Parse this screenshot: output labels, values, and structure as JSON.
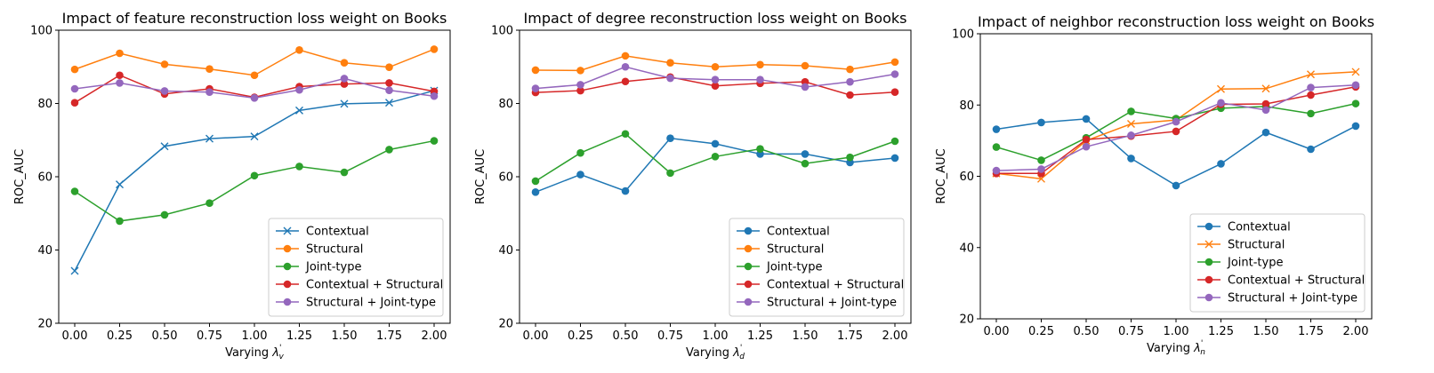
{
  "chart_data": [
    {
      "type": "line",
      "title": "Impact of feature reconstruction loss weight on Books",
      "xlabel": "Varying",
      "xlabel_symbol": "λ",
      "xlabel_sub": "v",
      "xlabel_sup": "'",
      "ylabel": "ROC_AUC",
      "ylim": [
        20,
        100
      ],
      "yticks": [
        20,
        40,
        60,
        80,
        100
      ],
      "x": [
        0.0,
        0.25,
        0.5,
        0.75,
        1.0,
        1.25,
        1.5,
        1.75,
        2.0
      ],
      "xtick_labels": [
        "0.00",
        "0.25",
        "0.50",
        "0.75",
        "1.00",
        "1.25",
        "1.50",
        "1.75",
        "2.00"
      ],
      "legend_position": "lower-right",
      "series": [
        {
          "name": "Contextual",
          "color": "#1f77b4",
          "marker": "x",
          "values": [
            34.3,
            57.9,
            68.3,
            70.4,
            71.0,
            78.1,
            79.9,
            80.2,
            83.5
          ]
        },
        {
          "name": "Structural",
          "color": "#ff7f0e",
          "marker": "circle",
          "values": [
            89.3,
            93.7,
            90.7,
            89.4,
            87.7,
            94.6,
            91.1,
            89.9,
            94.8
          ]
        },
        {
          "name": "Joint-type",
          "color": "#2ca02c",
          "marker": "circle",
          "values": [
            56.0,
            47.9,
            49.6,
            52.8,
            60.3,
            62.8,
            61.2,
            67.4,
            69.8
          ]
        },
        {
          "name": "Contextual + Structural",
          "color": "#d62728",
          "marker": "circle",
          "values": [
            80.2,
            87.7,
            82.6,
            84.0,
            81.7,
            84.6,
            85.3,
            85.6,
            83.3
          ]
        },
        {
          "name": "Structural + Joint-type",
          "color": "#9467bd",
          "marker": "circle",
          "values": [
            84.0,
            85.6,
            83.4,
            83.1,
            81.5,
            83.7,
            86.8,
            83.6,
            82.0
          ]
        }
      ]
    },
    {
      "type": "line",
      "title": "Impact of degree reconstruction loss weight on Books",
      "xlabel": "Varying",
      "xlabel_symbol": "λ",
      "xlabel_sub": "d",
      "xlabel_sup": "'",
      "ylabel": "ROC_AUC",
      "ylim": [
        20,
        100
      ],
      "yticks": [
        20,
        40,
        60,
        80,
        100
      ],
      "x": [
        0.0,
        0.25,
        0.5,
        0.75,
        1.0,
        1.25,
        1.5,
        1.75,
        2.0
      ],
      "xtick_labels": [
        "0.00",
        "0.25",
        "0.50",
        "0.75",
        "1.00",
        "1.25",
        "1.50",
        "1.75",
        "2.00"
      ],
      "legend_position": "lower-right",
      "series": [
        {
          "name": "Contextual",
          "color": "#1f77b4",
          "marker": "circle",
          "values": [
            55.8,
            60.6,
            56.1,
            70.5,
            69.0,
            66.2,
            66.2,
            63.9,
            65.1
          ]
        },
        {
          "name": "Structural",
          "color": "#ff7f0e",
          "marker": "circle",
          "values": [
            89.1,
            89.0,
            93.0,
            91.1,
            90.0,
            90.6,
            90.3,
            89.3,
            91.3
          ]
        },
        {
          "name": "Joint-type",
          "color": "#2ca02c",
          "marker": "circle",
          "values": [
            58.8,
            66.5,
            71.7,
            61.0,
            65.5,
            67.6,
            63.6,
            65.3,
            69.7
          ]
        },
        {
          "name": "Contextual + Structural",
          "color": "#d62728",
          "marker": "circle",
          "values": [
            83.0,
            83.5,
            86.0,
            87.2,
            84.8,
            85.5,
            85.9,
            82.3,
            83.1
          ]
        },
        {
          "name": "Structural + Joint-type",
          "color": "#9467bd",
          "marker": "circle",
          "values": [
            84.1,
            85.1,
            90.0,
            86.9,
            86.5,
            86.5,
            84.5,
            85.9,
            88.0
          ]
        }
      ]
    },
    {
      "type": "line",
      "title": "Impact of neighbor reconstruction loss weight on Books",
      "xlabel": "Varying",
      "xlabel_symbol": "λ",
      "xlabel_sub": "n",
      "xlabel_sup": "'",
      "ylabel": "ROC_AUC",
      "ylim": [
        20,
        100
      ],
      "yticks": [
        20,
        40,
        60,
        80,
        100
      ],
      "x": [
        0.0,
        0.25,
        0.5,
        0.75,
        1.0,
        1.25,
        1.5,
        1.75,
        2.0
      ],
      "xtick_labels": [
        "0.00",
        "0.25",
        "0.50",
        "0.75",
        "1.00",
        "1.25",
        "1.50",
        "1.75",
        "2.00"
      ],
      "legend_position": "lower-right",
      "series": [
        {
          "name": "Contextual",
          "color": "#1f77b4",
          "marker": "circle",
          "values": [
            73.2,
            75.1,
            76.1,
            65.0,
            57.4,
            63.5,
            72.3,
            67.6,
            74.1
          ]
        },
        {
          "name": "Structural",
          "color": "#ff7f0e",
          "marker": "x",
          "values": [
            60.8,
            59.3,
            70.0,
            74.7,
            75.8,
            84.5,
            84.6,
            88.6,
            89.3
          ]
        },
        {
          "name": "Joint-type",
          "color": "#2ca02c",
          "marker": "circle",
          "values": [
            68.2,
            64.5,
            70.8,
            78.2,
            76.2,
            79.1,
            79.6,
            77.6,
            80.4
          ]
        },
        {
          "name": "Contextual + Structural",
          "color": "#d62728",
          "marker": "circle",
          "values": [
            60.8,
            60.8,
            70.3,
            71.3,
            72.6,
            80.2,
            80.3,
            82.8,
            85.1
          ]
        },
        {
          "name": "Structural + Joint-type",
          "color": "#9467bd",
          "marker": "circle",
          "values": [
            61.6,
            62.0,
            68.3,
            71.5,
            75.3,
            80.6,
            78.6,
            84.9,
            85.6
          ]
        }
      ]
    }
  ]
}
